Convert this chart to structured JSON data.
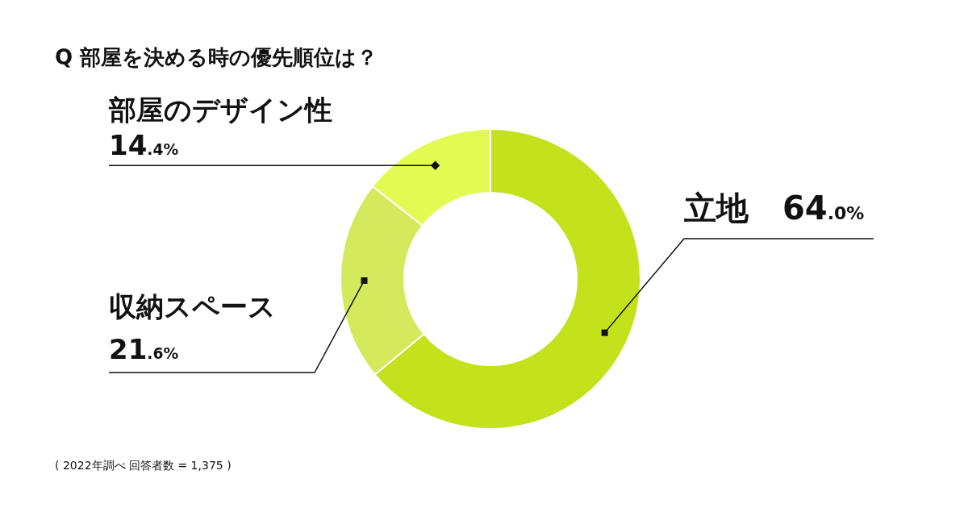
{
  "chart_data": {
    "type": "donut",
    "title": "Q 部屋を決める時の優先順位は？",
    "categories": [
      "立地",
      "収納スペース",
      "部屋のデザイン性"
    ],
    "values": [
      64.0,
      21.6,
      14.4
    ],
    "colors": [
      "#c3e21c",
      "#d5e95c",
      "#e2fb52"
    ],
    "value_labels": [
      "64.0%",
      "21.6%",
      "14.4%"
    ],
    "annotations": [
      "( 2022年調べ 回答者数 = 1,375 )"
    ]
  }
}
